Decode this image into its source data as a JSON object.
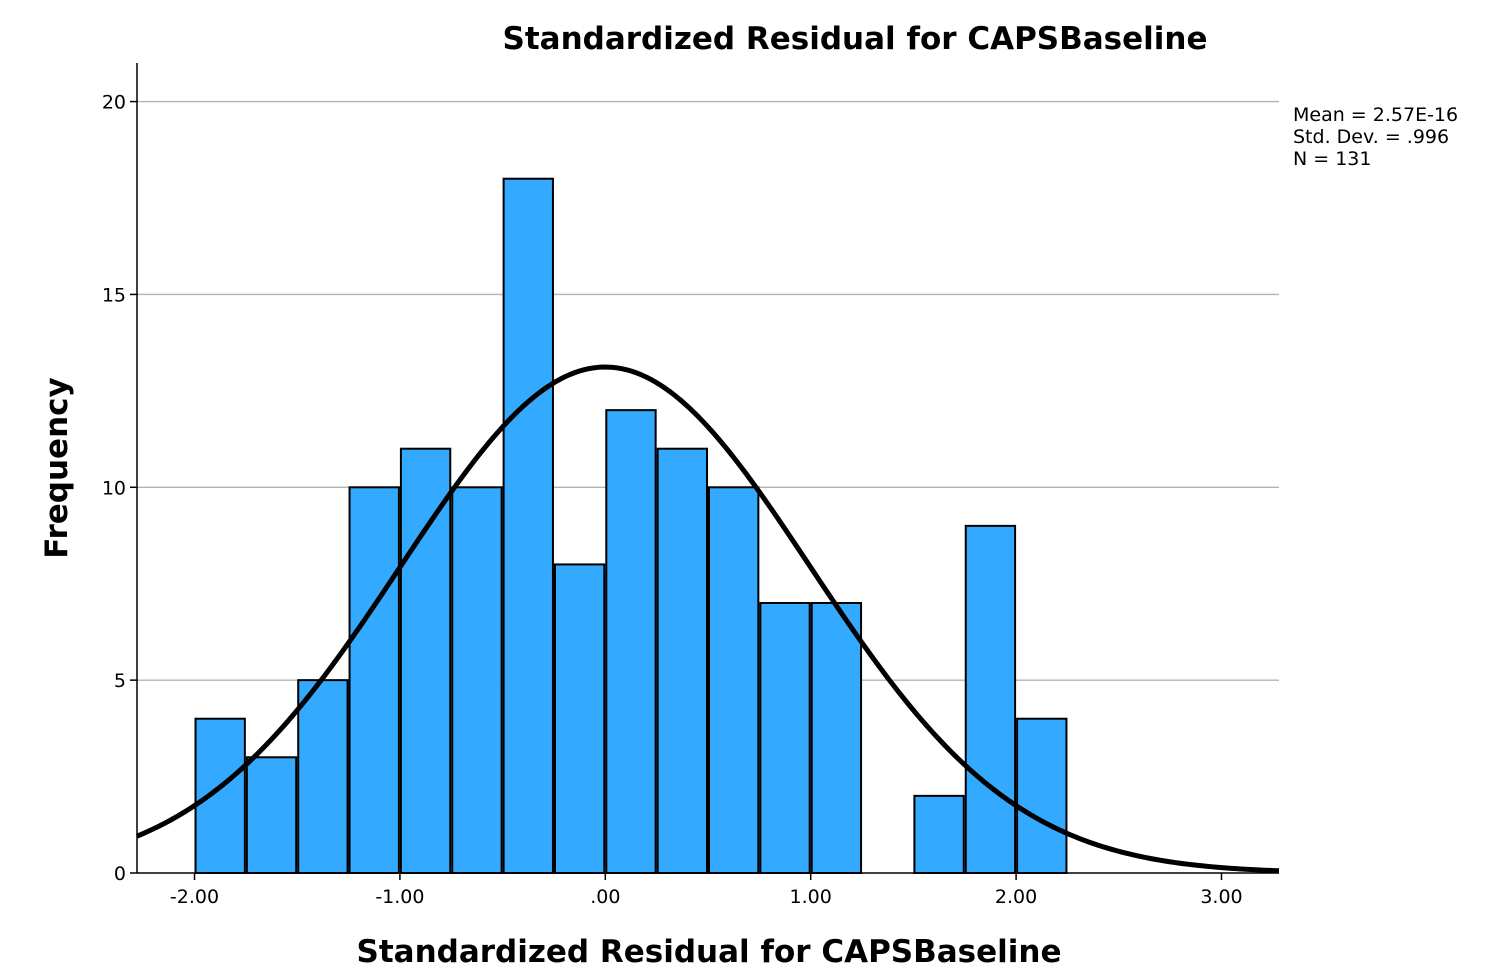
{
  "chart_data": {
    "type": "bar",
    "title": "Standardized Residual for CAPSBaseline",
    "xlabel": "Standardized Residual for CAPSBaseline",
    "ylabel": "Frequency",
    "xlim": [
      -2.28,
      3.28
    ],
    "ylim": [
      0,
      21
    ],
    "x_ticks": [
      {
        "value": -2,
        "label": "-2.00"
      },
      {
        "value": -1,
        "label": "-1.00"
      },
      {
        "value": 0,
        "label": ".00"
      },
      {
        "value": 1,
        "label": "1.00"
      },
      {
        "value": 2,
        "label": "2.00"
      },
      {
        "value": 3,
        "label": "3.00"
      }
    ],
    "y_ticks": [
      {
        "value": 0,
        "label": "0"
      },
      {
        "value": 5,
        "label": "5"
      },
      {
        "value": 10,
        "label": "10"
      },
      {
        "value": 15,
        "label": "15"
      },
      {
        "value": 20,
        "label": "20"
      }
    ],
    "bin_width": 0.25,
    "bins": [
      {
        "start": -2.0,
        "count": 4
      },
      {
        "start": -1.75,
        "count": 3
      },
      {
        "start": -1.5,
        "count": 5
      },
      {
        "start": -1.25,
        "count": 10
      },
      {
        "start": -1.0,
        "count": 11
      },
      {
        "start": -0.75,
        "count": 10
      },
      {
        "start": -0.5,
        "count": 18
      },
      {
        "start": -0.25,
        "count": 8
      },
      {
        "start": 0.0,
        "count": 12
      },
      {
        "start": 0.25,
        "count": 11
      },
      {
        "start": 0.5,
        "count": 10
      },
      {
        "start": 0.75,
        "count": 7
      },
      {
        "start": 1.0,
        "count": 7
      },
      {
        "start": 1.25,
        "count": 0
      },
      {
        "start": 1.5,
        "count": 2
      },
      {
        "start": 1.75,
        "count": 9
      },
      {
        "start": 2.0,
        "count": 4
      }
    ],
    "normal_curve": {
      "mean": 0,
      "sd": 0.996,
      "n": 131
    },
    "grid": "horizontal",
    "bar_color": "#33aaff",
    "bar_stroke": "#000000",
    "gridline_color": "#b3b3b3",
    "curve_color": "#000000",
    "stats_placement": "top-right",
    "stats": [
      "Mean = 2.57E-16",
      "Std. Dev. = .996",
      "N = 131"
    ]
  }
}
